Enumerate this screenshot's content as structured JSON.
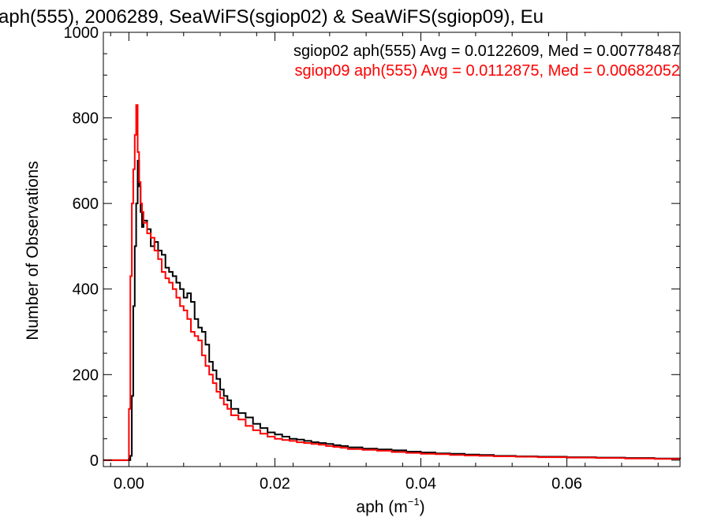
{
  "chart_data": {
    "type": "line",
    "title": "aph(555), 2006289, SeaWiFS(sgiop02) & SeaWiFS(sgiop09), Eu",
    "xlabel": "aph (m",
    "xlabel_sup": "−1",
    "xlabel_close": ")",
    "ylabel": "Number of Observations",
    "xlim": [
      -0.0035,
      0.0755
    ],
    "ylim": [
      -15,
      1000
    ],
    "x_ticks": [
      0.0,
      0.02,
      0.04,
      0.06
    ],
    "x_tick_labels": [
      "0.00",
      "0.02",
      "0.04",
      "0.06"
    ],
    "y_ticks": [
      0,
      200,
      400,
      600,
      800,
      1000
    ],
    "y_tick_labels": [
      "0",
      "200",
      "400",
      "600",
      "800",
      "1000"
    ],
    "grid": false,
    "step": true,
    "annotations": [
      {
        "text": "sgiop02 aph(555) Avg = 0.0122609, Med = 0.00778487",
        "color": "#000000"
      },
      {
        "text": "sgiop09 aph(555) Avg = 0.0112875, Med = 0.00682052",
        "color": "#ff0000"
      }
    ],
    "series": [
      {
        "color": "#000000",
        "x": [
          -0.0035,
          0.0,
          0.0002,
          0.0004,
          0.0006,
          0.0008,
          0.001,
          0.0012,
          0.0014,
          0.0016,
          0.0018,
          0.002,
          0.0025,
          0.003,
          0.0035,
          0.004,
          0.0045,
          0.005,
          0.0055,
          0.006,
          0.0065,
          0.007,
          0.0075,
          0.008,
          0.0085,
          0.009,
          0.0095,
          0.01,
          0.0105,
          0.011,
          0.0115,
          0.012,
          0.0125,
          0.013,
          0.0135,
          0.014,
          0.015,
          0.016,
          0.017,
          0.018,
          0.019,
          0.02,
          0.021,
          0.022,
          0.023,
          0.024,
          0.025,
          0.026,
          0.027,
          0.028,
          0.029,
          0.03,
          0.032,
          0.034,
          0.036,
          0.038,
          0.04,
          0.042,
          0.044,
          0.046,
          0.048,
          0.05,
          0.053,
          0.056,
          0.06,
          0.064,
          0.068,
          0.072,
          0.0755
        ],
        "y": [
          0,
          0,
          10,
          150,
          360,
          500,
          600,
          700,
          640,
          580,
          545,
          560,
          540,
          500,
          510,
          490,
          480,
          450,
          440,
          430,
          415,
          400,
          380,
          390,
          370,
          330,
          310,
          300,
          270,
          230,
          210,
          190,
          165,
          150,
          140,
          120,
          110,
          100,
          85,
          75,
          65,
          60,
          55,
          50,
          48,
          45,
          42,
          40,
          38,
          35,
          33,
          30,
          27,
          25,
          23,
          20,
          18,
          16,
          15,
          13,
          12,
          10,
          9,
          8,
          7,
          6,
          5,
          4,
          3
        ]
      },
      {
        "color": "#ff0000",
        "x": [
          -0.0035,
          -0.0002,
          0.0,
          0.0002,
          0.0004,
          0.0006,
          0.0008,
          0.001,
          0.0012,
          0.0014,
          0.0016,
          0.0018,
          0.002,
          0.0025,
          0.003,
          0.0035,
          0.004,
          0.0045,
          0.005,
          0.0055,
          0.006,
          0.0065,
          0.007,
          0.0075,
          0.008,
          0.0085,
          0.009,
          0.0095,
          0.01,
          0.0105,
          0.011,
          0.0115,
          0.012,
          0.0125,
          0.013,
          0.0135,
          0.014,
          0.015,
          0.016,
          0.017,
          0.018,
          0.019,
          0.02,
          0.021,
          0.022,
          0.023,
          0.024,
          0.025,
          0.026,
          0.027,
          0.028,
          0.029,
          0.03,
          0.032,
          0.034,
          0.036,
          0.038,
          0.04,
          0.042,
          0.044,
          0.046,
          0.048,
          0.05,
          0.053,
          0.056,
          0.06,
          0.064,
          0.068,
          0.072,
          0.0755
        ],
        "y": [
          0,
          0,
          120,
          430,
          600,
          680,
          760,
          830,
          720,
          650,
          600,
          580,
          555,
          530,
          520,
          490,
          470,
          440,
          425,
          415,
          400,
          380,
          360,
          350,
          330,
          300,
          290,
          280,
          245,
          220,
          200,
          180,
          160,
          145,
          130,
          120,
          105,
          95,
          80,
          70,
          62,
          55,
          50,
          47,
          45,
          42,
          40,
          38,
          36,
          33,
          31,
          29,
          26,
          24,
          22,
          19,
          17,
          15,
          14,
          12,
          11,
          10,
          9,
          8,
          7,
          6,
          5,
          4,
          3,
          3
        ]
      }
    ]
  }
}
